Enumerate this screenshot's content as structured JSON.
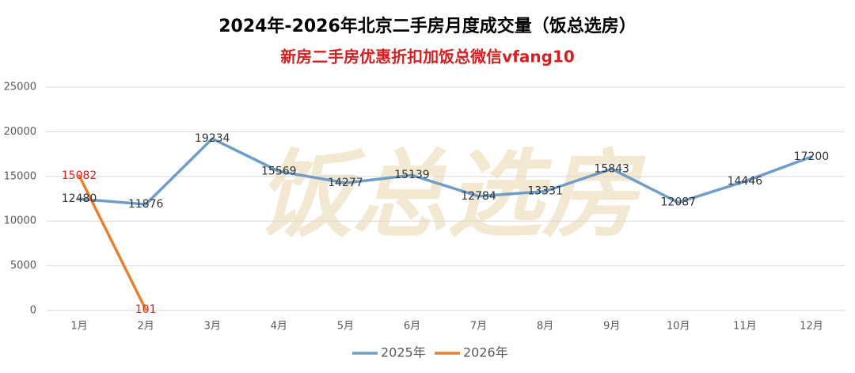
{
  "chart_data": {
    "type": "line",
    "title": "2024年-2026年北京二手房月度成交量（饭总选房）",
    "subtitle": "新房二手房优惠折扣加饭总微信vfang10",
    "watermark": "饭总选房",
    "categories": [
      "1月",
      "2月",
      "3月",
      "4月",
      "5月",
      "6月",
      "7月",
      "8月",
      "9月",
      "10月",
      "11月",
      "12月"
    ],
    "series": [
      {
        "name": "2025年",
        "color": "#6f9dc6",
        "label_color": "#333333",
        "values": [
          12480,
          11876,
          19234,
          15569,
          14277,
          15139,
          12784,
          13331,
          15843,
          12087,
          14446,
          17200
        ]
      },
      {
        "name": "2026年",
        "color": "#e8812f",
        "label_color": "#d42020",
        "values": [
          15082,
          101,
          null,
          null,
          null,
          null,
          null,
          null,
          null,
          null,
          null,
          null
        ]
      }
    ],
    "ylim": [
      0,
      25000
    ],
    "yticks": [
      0,
      5000,
      10000,
      15000,
      20000,
      25000
    ],
    "grid": true,
    "legend": "bottom"
  }
}
